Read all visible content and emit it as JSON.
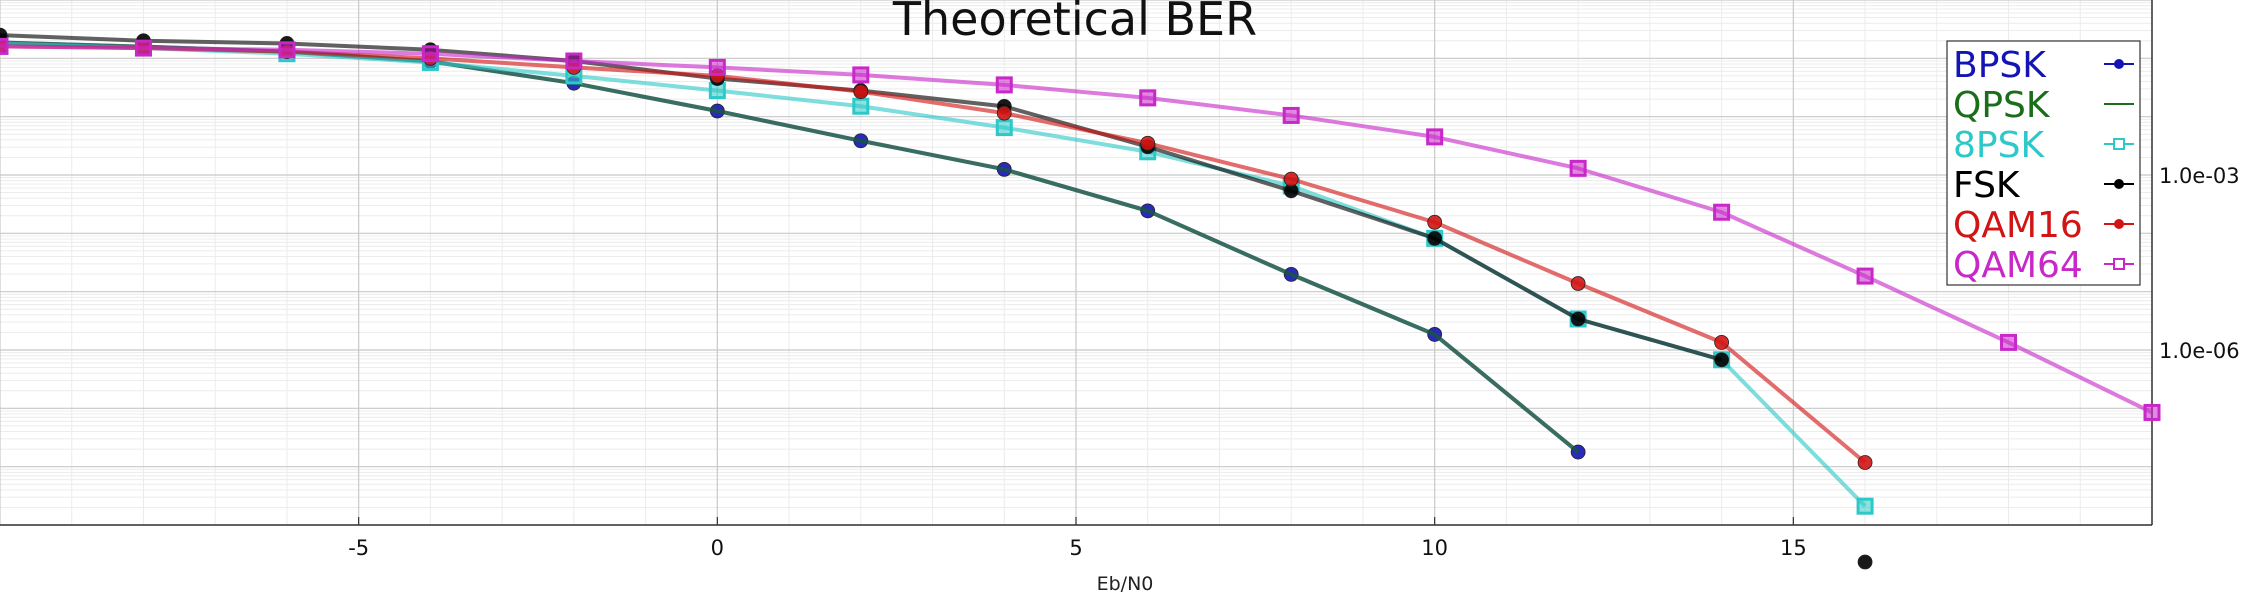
{
  "chart_data": {
    "type": "line",
    "title": "Theoretical BER",
    "xlabel": "Eb/N0",
    "ylabel": "",
    "y_scale": "log",
    "xlim": [
      -10,
      20
    ],
    "ylim": [
      1e-09,
      1
    ],
    "x_ticks": [
      -5,
      0,
      5,
      10,
      15
    ],
    "x_tick_labels": [
      "-5",
      "0",
      "5",
      "10",
      "15"
    ],
    "y_ticks": [
      0.001,
      1e-06
    ],
    "y_tick_labels": [
      "1.0e-03",
      "1.0e-06"
    ],
    "grid": true,
    "legend_position": "top-right",
    "series": [
      {
        "name": "BPSK",
        "color": "#1414b4",
        "marker": "circle",
        "line": true,
        "x": [
          -10,
          -8,
          -6,
          -4,
          -2,
          0,
          2,
          4,
          6,
          8,
          10,
          12
        ],
        "y": [
          0.1868,
          0.1584,
          0.1306,
          0.0887,
          0.0375,
          0.0125,
          0.00386,
          0.00125,
          0.000243,
          1.98e-05,
          1.85e-06,
          1.78e-08
        ]
      },
      {
        "name": "QPSK",
        "color": "#1a6e1a",
        "marker": "none",
        "line": true,
        "x": [
          -10,
          -8,
          -6,
          -4,
          -2,
          0,
          2,
          4,
          6,
          8,
          10,
          12
        ],
        "y": [
          0.1868,
          0.1584,
          0.1306,
          0.0887,
          0.0375,
          0.0125,
          0.00386,
          0.00125,
          0.000243,
          1.98e-05,
          1.85e-06,
          1.78e-08
        ]
      },
      {
        "name": "8PSK",
        "color": "#2ec8c8",
        "marker": "square",
        "line": true,
        "x": [
          -10,
          -8,
          -6,
          -4,
          -2,
          0,
          2,
          4,
          6,
          8,
          10,
          12,
          14,
          16
        ],
        "y": [
          0.18,
          0.15,
          0.12,
          0.085,
          0.05,
          0.028,
          0.0151,
          0.0065,
          0.0025,
          0.00065,
          8.2e-05,
          3.4e-06,
          6.8e-07,
          2.1e-09
        ]
      },
      {
        "name": "FSK",
        "color": "#000000",
        "marker": "circle",
        "line": true,
        "x": [
          -10,
          -8,
          -6,
          -4,
          -2,
          0,
          2,
          4,
          6,
          8,
          10,
          12,
          14,
          16
        ],
        "y": [
          0.25,
          0.2,
          0.18,
          0.14,
          0.09,
          0.045,
          0.028,
          0.015,
          0.00305,
          0.000536,
          8.2e-05,
          3.4e-06,
          6.8e-07,
          2.32e-10
        ]
      },
      {
        "name": "QAM16",
        "color": "#d21414",
        "marker": "circle",
        "line": true,
        "x": [
          -10,
          -8,
          -6,
          -4,
          -2,
          0,
          2,
          4,
          6,
          8,
          10,
          12,
          14,
          16
        ],
        "y": [
          0.16,
          0.15,
          0.13,
          0.1,
          0.07,
          0.05,
          0.0268,
          0.0115,
          0.0035,
          0.00085,
          0.000155,
          1.38e-05,
          1.35e-06,
          1.18e-08
        ]
      },
      {
        "name": "QAM64",
        "color": "#c828c8",
        "marker": "square",
        "line": true,
        "x": [
          -10,
          -8,
          -6,
          -4,
          -2,
          0,
          2,
          4,
          6,
          8,
          10,
          12,
          14,
          16,
          18,
          20
        ],
        "y": [
          0.16,
          0.15,
          0.14,
          0.12,
          0.09,
          0.07,
          0.052,
          0.035,
          0.021,
          0.0105,
          0.0045,
          0.0013,
          0.00023,
          1.85e-05,
          1.35e-06,
          8.5e-08
        ]
      }
    ]
  }
}
